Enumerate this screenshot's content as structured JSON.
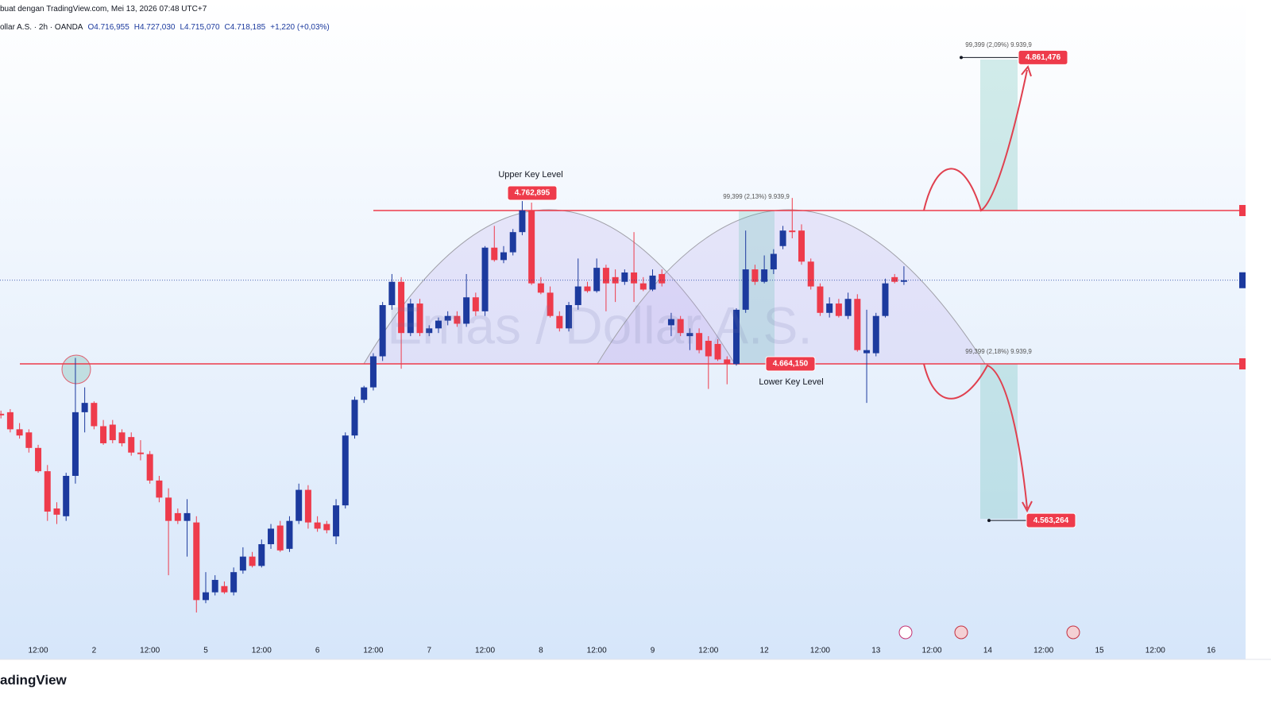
{
  "header": {
    "source_line": "buat dengan TradingView.com, Mei 13, 2026 07:48 UTC+7",
    "symbol": "ollar A.S. · 2h · OANDA",
    "ohlc": [
      "O4.716,955",
      "H4.727,030",
      "L4.715,070",
      "C4.718,185",
      "+1,220 (+0,03%)"
    ]
  },
  "chart_data": {
    "type": "candlestick",
    "watermark": "Emas / Dollar A.S.",
    "up_color": "#1c3a9e",
    "down_color": "#ee3b4b",
    "xlim": [
      -4.1,
      129.7
    ],
    "ylim": [
      4473.8,
      4898.5
    ],
    "xticks": [
      {
        "value": 0,
        "label": "12:00"
      },
      {
        "value": 6,
        "label": "2"
      },
      {
        "value": 12,
        "label": "12:00"
      },
      {
        "value": 18,
        "label": "5"
      },
      {
        "value": 24,
        "label": "12:00"
      },
      {
        "value": 30,
        "label": "6"
      },
      {
        "value": 36,
        "label": "12:00"
      },
      {
        "value": 42,
        "label": "7"
      },
      {
        "value": 48,
        "label": "12:00"
      },
      {
        "value": 54,
        "label": "8"
      },
      {
        "value": 60,
        "label": "12:00"
      },
      {
        "value": 66,
        "label": "9"
      },
      {
        "value": 72,
        "label": "12:00"
      },
      {
        "value": 78,
        "label": "12"
      },
      {
        "value": 84,
        "label": "12:00"
      },
      {
        "value": 90,
        "label": "13"
      },
      {
        "value": 96,
        "label": "12:00"
      },
      {
        "value": 102,
        "label": "14"
      },
      {
        "value": 108,
        "label": "12:00"
      },
      {
        "value": 114,
        "label": "15"
      },
      {
        "value": 120,
        "label": "12:00"
      },
      {
        "value": 126,
        "label": "16"
      }
    ],
    "candles": [
      [
        -4,
        4632,
        4634,
        4629,
        4631
      ],
      [
        -3,
        4633,
        4635,
        4620,
        4622
      ],
      [
        -2,
        4622,
        4626,
        4616,
        4618
      ],
      [
        -1,
        4620,
        4622,
        4607,
        4610
      ],
      [
        0,
        4610,
        4612,
        4594,
        4595
      ],
      [
        1,
        4595,
        4599,
        4563,
        4569
      ],
      [
        2,
        4571,
        4575,
        4561,
        4567
      ],
      [
        3,
        4566,
        4594,
        4563,
        4592
      ],
      [
        4,
        4592,
        4668,
        4587,
        4633
      ],
      [
        5,
        4633,
        4649,
        4620,
        4639
      ],
      [
        6,
        4639,
        4640,
        4622,
        4624
      ],
      [
        7,
        4624,
        4628,
        4612,
        4613
      ],
      [
        8,
        4625,
        4628,
        4613,
        4615
      ],
      [
        9,
        4620,
        4622,
        4611,
        4613
      ],
      [
        10,
        4617,
        4620,
        4605,
        4607
      ],
      [
        11,
        4607,
        4615,
        4602,
        4606
      ],
      [
        12,
        4606,
        4608,
        4587,
        4589
      ],
      [
        13,
        4589,
        4592,
        4575,
        4578
      ],
      [
        14,
        4578,
        4584,
        4528,
        4563
      ],
      [
        15,
        4568,
        4571,
        4561,
        4563
      ],
      [
        16,
        4563,
        4577,
        4540,
        4568
      ],
      [
        17,
        4562,
        4566,
        4504,
        4512
      ],
      [
        18,
        4512,
        4530,
        4510,
        4517
      ],
      [
        19,
        4517,
        4528,
        4515,
        4525
      ],
      [
        20,
        4521,
        4524,
        4516,
        4517
      ],
      [
        21,
        4517,
        4533,
        4515,
        4530
      ],
      [
        22,
        4531,
        4546,
        4529,
        4540
      ],
      [
        23,
        4540,
        4543,
        4533,
        4534
      ],
      [
        24,
        4534,
        4551,
        4533,
        4548
      ],
      [
        25,
        4548,
        4561,
        4545,
        4558
      ],
      [
        26,
        4560,
        4563,
        4543,
        4544
      ],
      [
        27,
        4545,
        4566,
        4543,
        4563
      ],
      [
        28,
        4563,
        4587,
        4561,
        4583
      ],
      [
        29,
        4583,
        4586,
        4558,
        4562
      ],
      [
        30,
        4562,
        4566,
        4556,
        4558
      ],
      [
        31,
        4561,
        4563,
        4555,
        4557
      ],
      [
        32,
        4553,
        4577,
        4548,
        4573
      ],
      [
        33,
        4573,
        4620,
        4571,
        4618
      ],
      [
        34,
        4618,
        4643,
        4616,
        4641
      ],
      [
        35,
        4641,
        4650,
        4639,
        4649
      ],
      [
        36,
        4649,
        4671,
        4647,
        4669
      ],
      [
        37,
        4669,
        4704,
        4666,
        4702
      ],
      [
        38,
        4702,
        4722,
        4699,
        4717
      ],
      [
        39,
        4717,
        4720,
        4661,
        4684
      ],
      [
        40,
        4684,
        4706,
        4682,
        4703
      ],
      [
        41,
        4703,
        4706,
        4682,
        4684
      ],
      [
        42,
        4684,
        4689,
        4682,
        4687
      ],
      [
        43,
        4687,
        4694,
        4684,
        4692
      ],
      [
        44,
        4692,
        4698,
        4689,
        4695
      ],
      [
        45,
        4695,
        4698,
        4688,
        4690
      ],
      [
        46,
        4690,
        4722,
        4688,
        4707
      ],
      [
        47,
        4707,
        4710,
        4695,
        4698
      ],
      [
        48,
        4698,
        4740,
        4695,
        4739
      ],
      [
        49,
        4739,
        4753,
        4730,
        4731
      ],
      [
        50,
        4731,
        4740,
        4729,
        4736
      ],
      [
        51,
        4736,
        4751,
        4734,
        4749
      ],
      [
        52,
        4749,
        4769,
        4747,
        4763
      ],
      [
        53,
        4763,
        4768,
        4715,
        4716
      ],
      [
        54,
        4716,
        4720,
        4709,
        4710
      ],
      [
        55,
        4710,
        4714,
        4694,
        4695
      ],
      [
        56,
        4695,
        4698,
        4685,
        4687
      ],
      [
        57,
        4687,
        4704,
        4685,
        4702
      ],
      [
        58,
        4702,
        4732,
        4699,
        4714
      ],
      [
        59,
        4714,
        4717,
        4710,
        4711
      ],
      [
        60,
        4711,
        4732,
        4710,
        4726
      ],
      [
        61,
        4726,
        4728,
        4698,
        4716
      ],
      [
        62,
        4720,
        4725,
        4704,
        4716
      ],
      [
        63,
        4717,
        4725,
        4715,
        4723
      ],
      [
        64,
        4723,
        4749,
        4704,
        4716
      ],
      [
        65,
        4716,
        4720,
        4711,
        4712
      ],
      [
        66,
        4712,
        4725,
        4711,
        4721
      ],
      [
        67,
        4722,
        4725,
        4714,
        4716
      ],
      [
        68,
        4689,
        4697,
        4682,
        4693
      ],
      [
        69,
        4693,
        4695,
        4682,
        4684
      ],
      [
        70,
        4682,
        4687,
        4673,
        4684
      ],
      [
        71,
        4684,
        4687,
        4671,
        4673
      ],
      [
        72,
        4679,
        4682,
        4648,
        4669
      ],
      [
        73,
        4677,
        4680,
        4666,
        4667
      ],
      [
        74,
        4667,
        4669,
        4651,
        4664
      ],
      [
        75,
        4664,
        4700,
        4663,
        4699
      ],
      [
        76,
        4699,
        4750,
        4697,
        4725
      ],
      [
        77,
        4725,
        4728,
        4715,
        4717
      ],
      [
        78,
        4717,
        4734,
        4716,
        4725
      ],
      [
        79,
        4725,
        4738,
        4722,
        4735
      ],
      [
        80,
        4740,
        4753,
        4738,
        4750
      ],
      [
        81,
        4750,
        4771,
        4745,
        4749
      ],
      [
        82,
        4750,
        4754,
        4728,
        4730
      ],
      [
        83,
        4730,
        4732,
        4712,
        4714
      ],
      [
        84,
        4714,
        4716,
        4695,
        4697
      ],
      [
        85,
        4697,
        4707,
        4694,
        4703
      ],
      [
        86,
        4703,
        4706,
        4694,
        4695
      ],
      [
        87,
        4695,
        4710,
        4693,
        4706
      ],
      [
        88,
        4706,
        4709,
        4672,
        4673
      ],
      [
        89,
        4671,
        4699,
        4639,
        4673
      ],
      [
        90,
        4671,
        4697,
        4669,
        4695
      ],
      [
        91,
        4695,
        4719,
        4694,
        4716
      ],
      [
        92,
        4720,
        4722,
        4716,
        4717
      ],
      [
        93,
        4717,
        4727,
        4715,
        4718
      ]
    ],
    "levels": [
      {
        "name": "Upper Key Level",
        "value": 4762.895,
        "label": "4.762,895"
      },
      {
        "name": "Lower Key Level",
        "value": 4664.15,
        "label": "4.664,150"
      }
    ],
    "targets": [
      {
        "value": 4861.476,
        "label": "4.861,476"
      },
      {
        "value": 4563.264,
        "label": "4.563,264"
      }
    ],
    "measurements": [
      "99,399 (2,09%) 9.939,9",
      "99,399 (2,13%) 9.939,9",
      "99,399 (2,18%) 9.939,9"
    ]
  },
  "footer": {
    "logo": "adingView"
  }
}
